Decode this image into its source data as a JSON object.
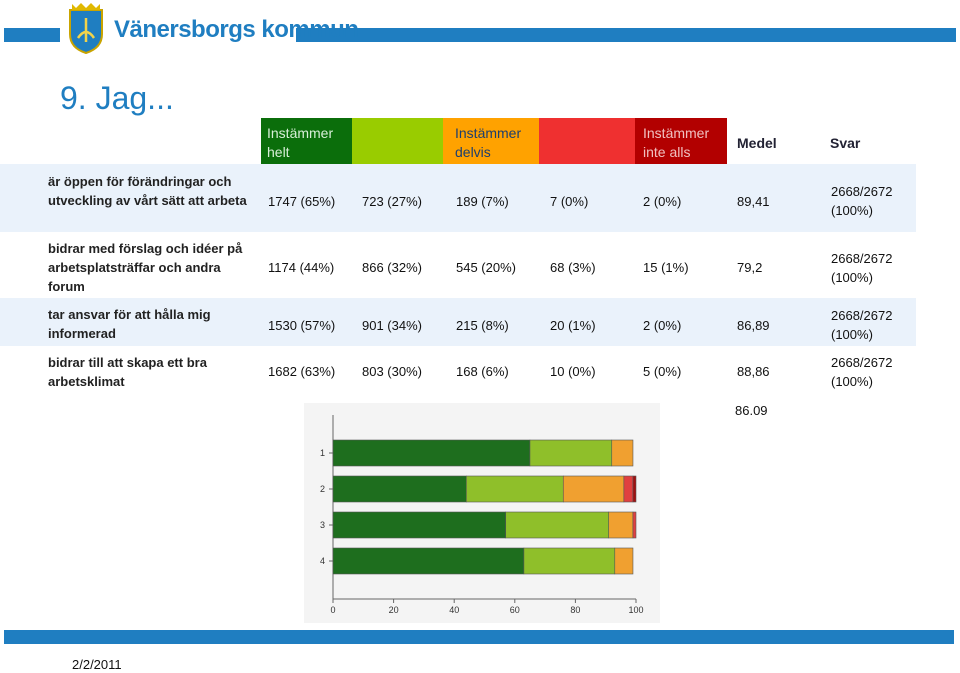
{
  "header": {
    "org_name": "Vänersborgs kommun"
  },
  "title": "9. Jag...",
  "columns": {
    "c1_line1": "Instämmer",
    "c1_line2": "helt",
    "c3_line1": "Instämmer",
    "c3_line2": "delvis",
    "c5_line1": "Instämmer",
    "c5_line2": "inte alls",
    "medel": "Medel",
    "svar": "Svar"
  },
  "rows": [
    {
      "label": "är öppen för förändringar och utveckling av vårt sätt att arbeta",
      "cells": [
        "1747 (65%)",
        "723 (27%)",
        "189 (7%)",
        "7 (0%)",
        "2 (0%)"
      ],
      "medel": "89,41",
      "svar1": "2668/2672",
      "svar2": "(100%)"
    },
    {
      "label": "bidrar med förslag och idéer på arbetsplatsträffar och andra forum",
      "cells": [
        "1174 (44%)",
        "866 (32%)",
        "545 (20%)",
        "68 (3%)",
        "15 (1%)"
      ],
      "medel": "79,2",
      "svar1": "2668/2672",
      "svar2": "(100%)"
    },
    {
      "label": "tar ansvar för att hålla mig informerad",
      "cells": [
        "1530 (57%)",
        "901 (34%)",
        "215 (8%)",
        "20 (1%)",
        "2 (0%)"
      ],
      "medel": "86,89",
      "svar1": "2668/2672",
      "svar2": "(100%)"
    },
    {
      "label": "bidrar till att skapa ett bra arbetsklimat",
      "cells": [
        "1682 (63%)",
        "803 (30%)",
        "168 (6%)",
        "10 (0%)",
        "5 (0%)"
      ],
      "medel": "88,86",
      "svar1": "2668/2672",
      "svar2": "(100%)"
    }
  ],
  "average": "86.09",
  "chart_data": {
    "type": "bar",
    "orientation": "horizontal-stacked",
    "categories": [
      "1",
      "2",
      "3",
      "4"
    ],
    "series": [
      {
        "name": "Instämmer helt",
        "color": "#1e6e1e",
        "values": [
          65,
          44,
          57,
          63
        ]
      },
      {
        "name": "Instämmer",
        "color": "#8fbf2a",
        "values": [
          27,
          32,
          34,
          30
        ]
      },
      {
        "name": "Instämmer delvis",
        "color": "#f0a030",
        "values": [
          7,
          20,
          8,
          6
        ]
      },
      {
        "name": "Instämmer inte",
        "color": "#e04040",
        "values": [
          0,
          3,
          1,
          0
        ]
      },
      {
        "name": "Instämmer inte alls",
        "color": "#a01010",
        "values": [
          0,
          1,
          0,
          0
        ]
      }
    ],
    "xticks": [
      "0",
      "20",
      "40",
      "60",
      "80",
      "100"
    ],
    "xlim": [
      0,
      100
    ]
  },
  "footer": {
    "date": "2/2/2011"
  }
}
